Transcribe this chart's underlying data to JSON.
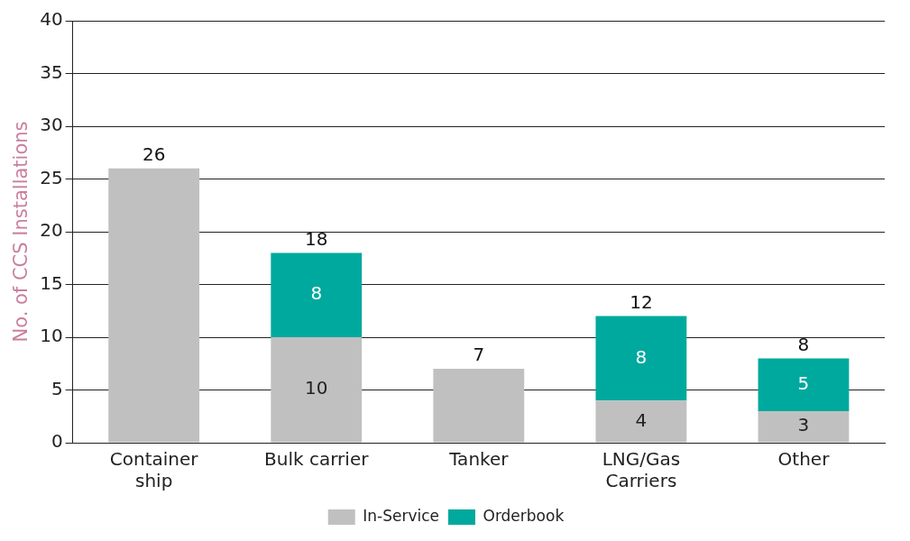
{
  "chart_data": {
    "type": "bar",
    "stacked": true,
    "ylabel": "No. of CCS Installations",
    "categories": [
      "Container ship",
      "Bulk carrier",
      "Tanker",
      "LNG/Gas Carriers",
      "Other"
    ],
    "series": [
      {
        "name": "In-Service",
        "color": "#c0c0c0",
        "values": [
          26,
          10,
          7,
          4,
          3
        ],
        "value_labels": [
          null,
          "10",
          null,
          "4",
          "3"
        ]
      },
      {
        "name": "Orderbook",
        "color": "#00a99d",
        "values": [
          null,
          8,
          null,
          8,
          5
        ],
        "value_labels": [
          null,
          "8",
          null,
          "8",
          "5"
        ]
      }
    ],
    "totals": [
      "26",
      "18",
      "7",
      "12",
      "8"
    ],
    "ylim": [
      0,
      40
    ],
    "yticks": [
      0,
      5,
      10,
      15,
      20,
      25,
      30,
      35,
      40
    ],
    "grid": "y",
    "legend": "bottom"
  }
}
